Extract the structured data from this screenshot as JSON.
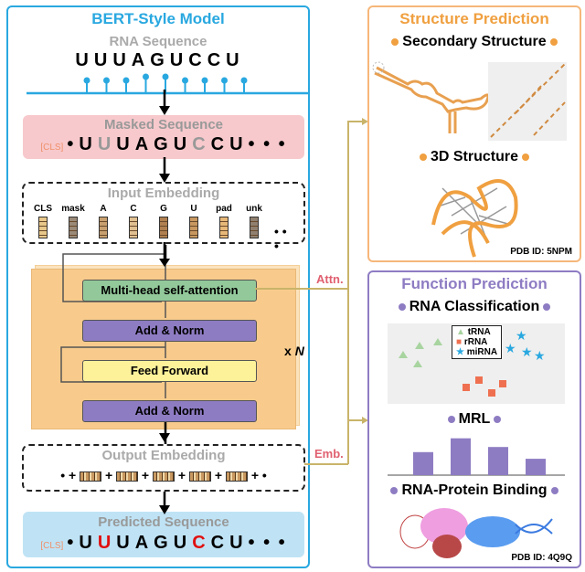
{
  "model": {
    "title": "BERT-Style Model",
    "rna_label": "RNA Sequence",
    "rna_sequence": [
      "U",
      "U",
      "U",
      "A",
      "G",
      "U",
      "C",
      "C",
      "U"
    ],
    "masked_label": "Masked Sequence",
    "cls": "[CLS]",
    "masked_sequence": [
      "U",
      "U",
      "U",
      "A",
      "G",
      "U",
      "C",
      "C",
      "U"
    ],
    "masked_positions": [
      1,
      6
    ],
    "input_label": "Input Embedding",
    "tokens": [
      "CLS",
      "mask",
      "A",
      "C",
      "G",
      "U",
      "pad",
      "unk"
    ],
    "mhsa": "Multi-head self-attention",
    "add_norm": "Add & Norm",
    "feed_forward": "Feed Forward",
    "repeat_x": "x",
    "repeat_n": "N",
    "output_label": "Output Embedding",
    "predicted_label": "Predicted Sequence",
    "predicted_sequence": [
      "U",
      "U",
      "U",
      "A",
      "G",
      "U",
      "C",
      "C",
      "U"
    ],
    "predicted_positions": [
      1,
      6
    ],
    "ellipsis": "• • •"
  },
  "connectors": {
    "attn": "Attn.",
    "emb": "Emb."
  },
  "structure": {
    "title": "Structure Prediction",
    "secondary": "Secondary Structure",
    "tertiary": "3D Structure",
    "pdb": "PDB ID: 5NPM"
  },
  "function": {
    "title": "Function Prediction",
    "classification": "RNA Classification",
    "legend": [
      "tRNA",
      "rRNA",
      "miRNA"
    ],
    "mrl": "MRL",
    "mrl_bars": [
      0.45,
      0.72,
      0.55,
      0.32
    ],
    "binding": "RNA-Protein Binding",
    "pdb": "PDB ID: 4Q9Q"
  },
  "colors": {
    "blue": "#29a8e0",
    "orange": "#f0a040",
    "purple": "#8e7cc3",
    "green": "#93c99a",
    "addnorm": "#8e7cc3",
    "ff": "#fdf29a",
    "masked_bg": "#f7c9cc",
    "pred_bg": "#bfe3f5",
    "connector": "#c9b46a",
    "red": "#e01010"
  }
}
